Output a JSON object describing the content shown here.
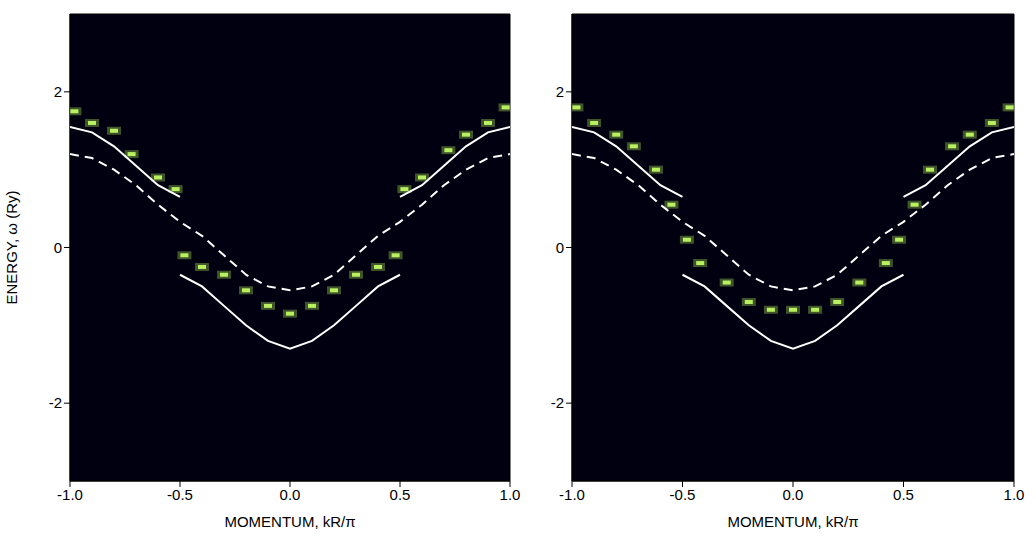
{
  "chart_data": [
    {
      "type": "line",
      "xlabel": "MOMENTUM, kR/π",
      "ylabel": "ENERGY, ω (Ry)",
      "xlim": [
        -1,
        1
      ],
      "ylim": [
        -3,
        3
      ],
      "xticks": [
        {
          "value": -1,
          "label": "-1.0"
        },
        {
          "value": -0.5,
          "label": "-0.5"
        },
        {
          "value": 0,
          "label": "0.0"
        },
        {
          "value": 0.5,
          "label": "0.5"
        },
        {
          "value": 1,
          "label": "1.0"
        }
      ],
      "yticks": [
        -2,
        0,
        2
      ],
      "grid": false,
      "series": [
        {
          "type": "scatter",
          "marker": "square",
          "color": "#b8f060",
          "x": [
            -0.98,
            -0.9,
            -0.8,
            -0.72,
            -0.6,
            -0.52,
            0.52,
            0.6,
            0.72,
            0.8,
            0.9,
            0.98,
            -0.48,
            -0.4,
            -0.3,
            -0.2,
            -0.1,
            0,
            0.1,
            0.2,
            0.3,
            0.4,
            0.48
          ],
          "values": [
            1.75,
            1.6,
            1.5,
            1.2,
            0.9,
            0.75,
            0.75,
            0.9,
            1.25,
            1.45,
            1.6,
            1.8,
            -0.1,
            -0.25,
            -0.35,
            -0.55,
            -0.75,
            -0.85,
            -0.75,
            -0.55,
            -0.35,
            -0.25,
            -0.1
          ]
        },
        {
          "type": "line",
          "line_style": "solid",
          "color": "#ffffff",
          "x": [
            -0.5,
            -0.4,
            -0.3,
            -0.2,
            -0.1,
            0,
            0.1,
            0.2,
            0.3,
            0.4,
            0.5
          ],
          "values": [
            -0.35,
            -0.5,
            -0.75,
            -1.0,
            -1.2,
            -1.3,
            -1.2,
            -1.0,
            -0.75,
            -0.5,
            -0.35
          ]
        },
        {
          "type": "line",
          "line_style": "solid",
          "color": "#ffffff",
          "x": [
            -1.0,
            -0.9,
            -0.8,
            -0.7,
            -0.6,
            -0.5
          ],
          "values": [
            1.55,
            1.48,
            1.3,
            1.05,
            0.8,
            0.65
          ]
        },
        {
          "type": "line",
          "line_style": "solid",
          "color": "#ffffff",
          "x": [
            0.5,
            0.6,
            0.7,
            0.8,
            0.9,
            1.0
          ],
          "values": [
            0.65,
            0.8,
            1.05,
            1.3,
            1.48,
            1.55
          ]
        },
        {
          "type": "line",
          "line_style": "dashed",
          "color": "#ffffff",
          "x": [
            -1.0,
            -0.9,
            -0.8,
            -0.7,
            -0.6,
            -0.5,
            -0.4,
            -0.3,
            -0.2,
            -0.1,
            0,
            0.1,
            0.2,
            0.3,
            0.4,
            0.5,
            0.6,
            0.7,
            0.8,
            0.9,
            1.0
          ],
          "values": [
            1.2,
            1.15,
            1.0,
            0.8,
            0.55,
            0.33,
            0.15,
            -0.1,
            -0.35,
            -0.5,
            -0.55,
            -0.5,
            -0.35,
            -0.1,
            0.15,
            0.33,
            0.55,
            0.8,
            1.0,
            1.15,
            1.2
          ]
        }
      ]
    },
    {
      "type": "line",
      "xlabel": "MOMENTUM, kR/π",
      "xlim": [
        -1,
        1
      ],
      "ylim": [
        -3,
        3
      ],
      "xticks": [
        {
          "value": -1,
          "label": "-1.0"
        },
        {
          "value": -0.5,
          "label": "-0.5"
        },
        {
          "value": 0,
          "label": "0.0"
        },
        {
          "value": 0.5,
          "label": "0.5"
        },
        {
          "value": 1,
          "label": "1.0"
        }
      ],
      "yticks": [
        -2,
        0,
        2
      ],
      "grid": false,
      "series": [
        {
          "type": "scatter",
          "marker": "square",
          "color": "#b8f060",
          "x": [
            -0.98,
            -0.9,
            -0.8,
            -0.72,
            -0.62,
            0.62,
            0.72,
            0.8,
            0.9,
            0.98,
            -0.55,
            -0.48,
            -0.42,
            -0.3,
            -0.2,
            -0.1,
            0,
            0.1,
            0.2,
            0.3,
            0.42,
            0.48,
            0.55
          ],
          "values": [
            1.8,
            1.6,
            1.45,
            1.3,
            1.0,
            1.0,
            1.3,
            1.45,
            1.6,
            1.8,
            0.55,
            0.1,
            -0.2,
            -0.45,
            -0.7,
            -0.8,
            -0.8,
            -0.8,
            -0.7,
            -0.45,
            -0.2,
            0.1,
            0.55
          ]
        },
        {
          "type": "line",
          "line_style": "solid",
          "color": "#ffffff",
          "x": [
            -0.5,
            -0.4,
            -0.3,
            -0.2,
            -0.1,
            0,
            0.1,
            0.2,
            0.3,
            0.4,
            0.5
          ],
          "values": [
            -0.35,
            -0.5,
            -0.75,
            -1.0,
            -1.2,
            -1.3,
            -1.2,
            -1.0,
            -0.75,
            -0.5,
            -0.35
          ]
        },
        {
          "type": "line",
          "line_style": "solid",
          "color": "#ffffff",
          "x": [
            -1.0,
            -0.9,
            -0.8,
            -0.7,
            -0.6,
            -0.5
          ],
          "values": [
            1.55,
            1.48,
            1.3,
            1.05,
            0.8,
            0.65
          ]
        },
        {
          "type": "line",
          "line_style": "solid",
          "color": "#ffffff",
          "x": [
            0.5,
            0.6,
            0.7,
            0.8,
            0.9,
            1.0
          ],
          "values": [
            0.65,
            0.8,
            1.05,
            1.3,
            1.48,
            1.55
          ]
        },
        {
          "type": "line",
          "line_style": "dashed",
          "color": "#ffffff",
          "x": [
            -1.0,
            -0.9,
            -0.8,
            -0.7,
            -0.6,
            -0.5,
            -0.4,
            -0.3,
            -0.2,
            -0.1,
            0,
            0.1,
            0.2,
            0.3,
            0.4,
            0.5,
            0.6,
            0.7,
            0.8,
            0.9,
            1.0
          ],
          "values": [
            1.2,
            1.15,
            1.0,
            0.8,
            0.55,
            0.33,
            0.15,
            -0.1,
            -0.35,
            -0.5,
            -0.55,
            -0.5,
            -0.35,
            -0.1,
            0.15,
            0.33,
            0.55,
            0.8,
            1.0,
            1.15,
            1.2
          ]
        }
      ]
    }
  ]
}
